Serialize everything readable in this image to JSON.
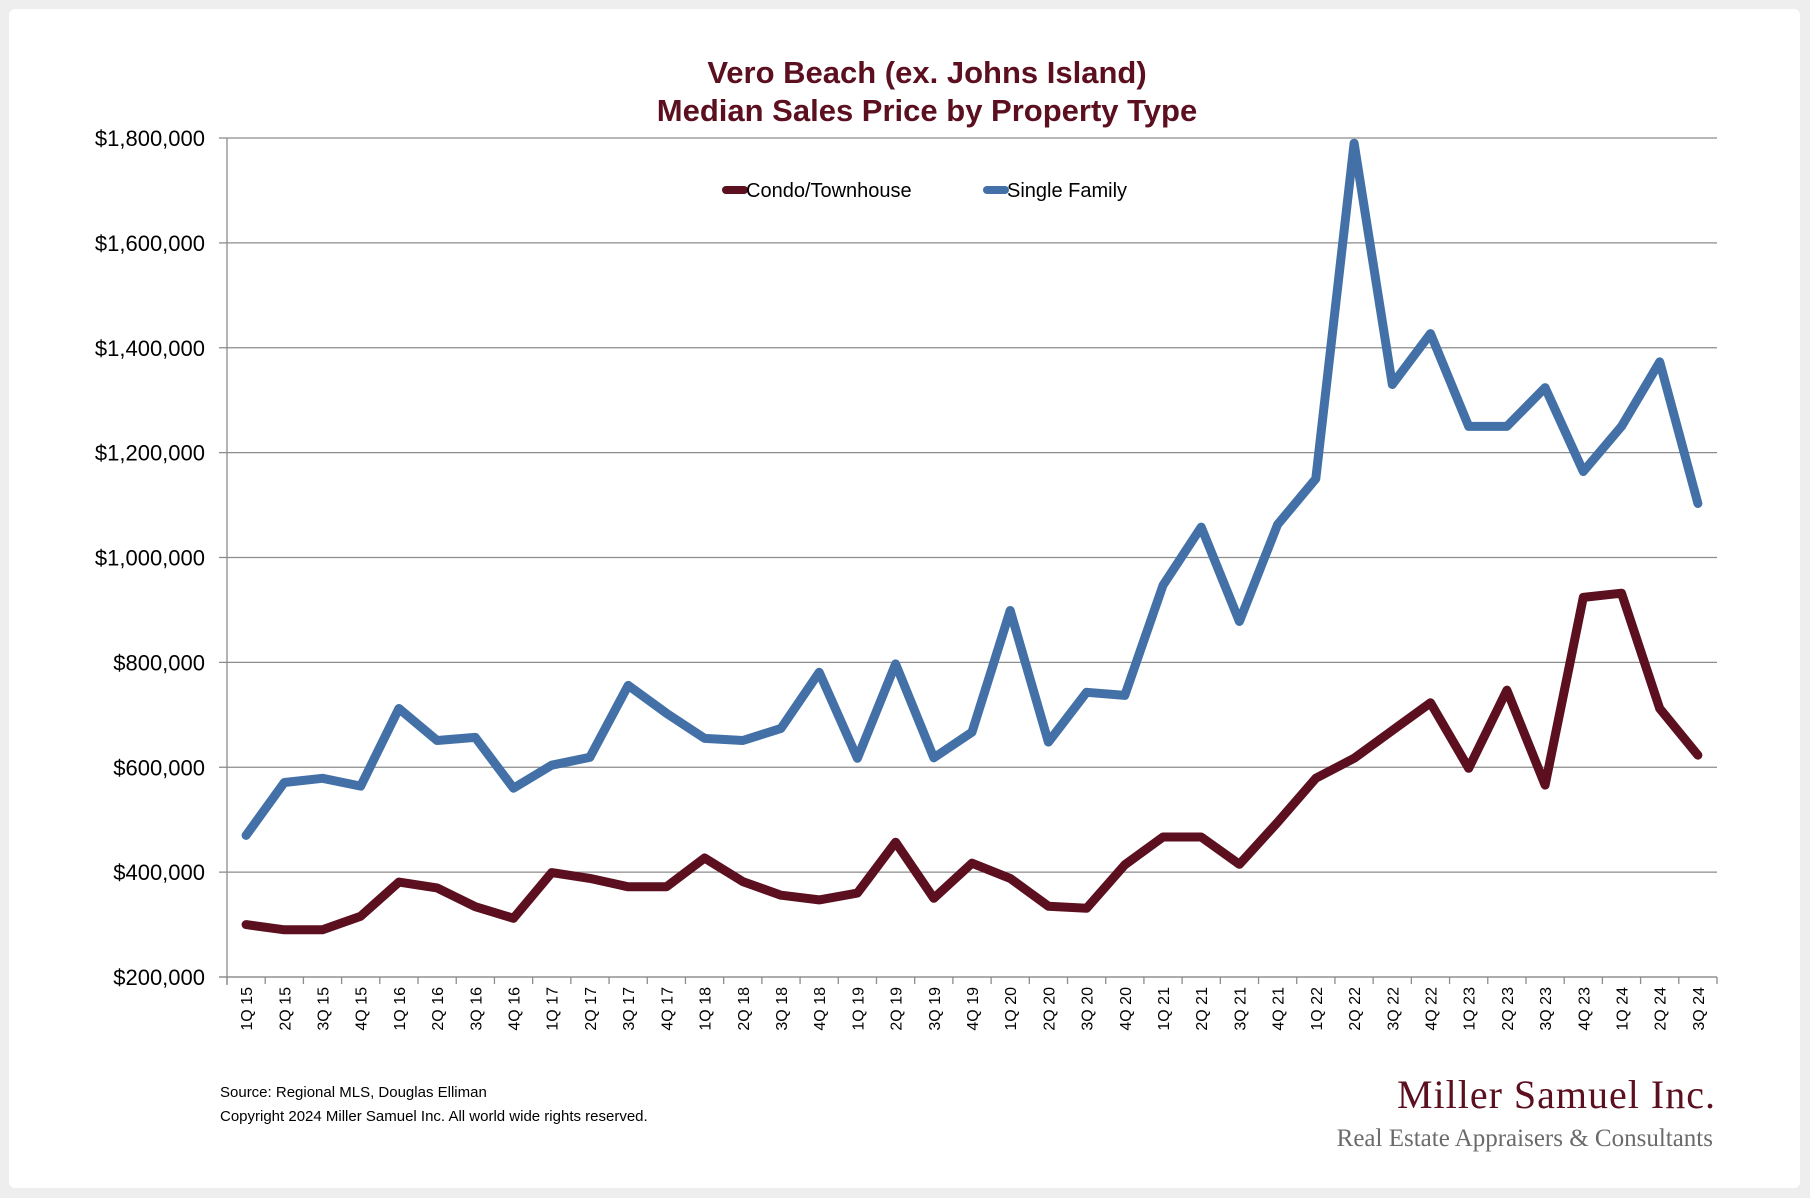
{
  "chart_data": {
    "type": "line",
    "title": [
      "Vero Beach (ex. Johns Island)",
      "Median Sales Price by Property Type"
    ],
    "xlabel": "",
    "ylabel": "",
    "ylim": [
      200000,
      1800000
    ],
    "yticks": [
      200000,
      400000,
      600000,
      800000,
      1000000,
      1200000,
      1400000,
      1600000,
      1800000
    ],
    "ytick_labels": [
      "$200,000",
      "$400,000",
      "$600,000",
      "$800,000",
      "$1,000,000",
      "$1,200,000",
      "$1,400,000",
      "$1,600,000",
      "$1,800,000"
    ],
    "grid": true,
    "legend_position": "top-center",
    "categories": [
      "1Q 15",
      "2Q 15",
      "3Q 15",
      "4Q 15",
      "1Q 16",
      "2Q 16",
      "3Q 16",
      "4Q 16",
      "1Q 17",
      "2Q 17",
      "3Q 17",
      "4Q 17",
      "1Q 18",
      "2Q 18",
      "3Q 18",
      "4Q 18",
      "1Q 19",
      "2Q 19",
      "3Q 19",
      "4Q 19",
      "1Q 20",
      "2Q 20",
      "3Q 20",
      "4Q 20",
      "1Q 21",
      "2Q 21",
      "3Q 21",
      "4Q 21",
      "1Q 22",
      "2Q 22",
      "3Q 22",
      "4Q 22",
      "1Q 23",
      "2Q 23",
      "3Q 23",
      "4Q 23",
      "1Q 24",
      "2Q 24",
      "3Q 24"
    ],
    "series": [
      {
        "name": "Condo/Townhouse",
        "color": "#5b0f1f",
        "values": [
          300000,
          290000,
          290000,
          316000,
          381000,
          370000,
          334000,
          312000,
          399000,
          388000,
          372000,
          372000,
          427000,
          382000,
          356000,
          347000,
          360000,
          457000,
          350000,
          417000,
          388000,
          335000,
          331000,
          414000,
          467000,
          467000,
          415000,
          495000,
          579000,
          617000,
          670000,
          723000,
          598000,
          747000,
          566000,
          924000,
          932000,
          712000,
          623000
        ]
      },
      {
        "name": "Single Family",
        "color": "#4371a7",
        "values": [
          470000,
          571000,
          579000,
          564000,
          712000,
          651000,
          657000,
          560000,
          604000,
          619000,
          756000,
          703000,
          655000,
          651000,
          674000,
          781000,
          617000,
          797000,
          618000,
          667000,
          899000,
          648000,
          743000,
          737000,
          947000,
          1058000,
          878000,
          1063000,
          1150000,
          1790000,
          1330000,
          1427000,
          1250000,
          1250000,
          1324000,
          1164000,
          1250000,
          1373000,
          1103000
        ]
      }
    ]
  },
  "footer": {
    "source": "Source: Regional MLS, Douglas Elliman",
    "copyright": "Copyright 2024 Miller Samuel Inc.  All world wide rights reserved."
  },
  "logo": {
    "name": "Miller Samuel Inc.",
    "tagline": "Real Estate Appraisers & Consultants"
  }
}
